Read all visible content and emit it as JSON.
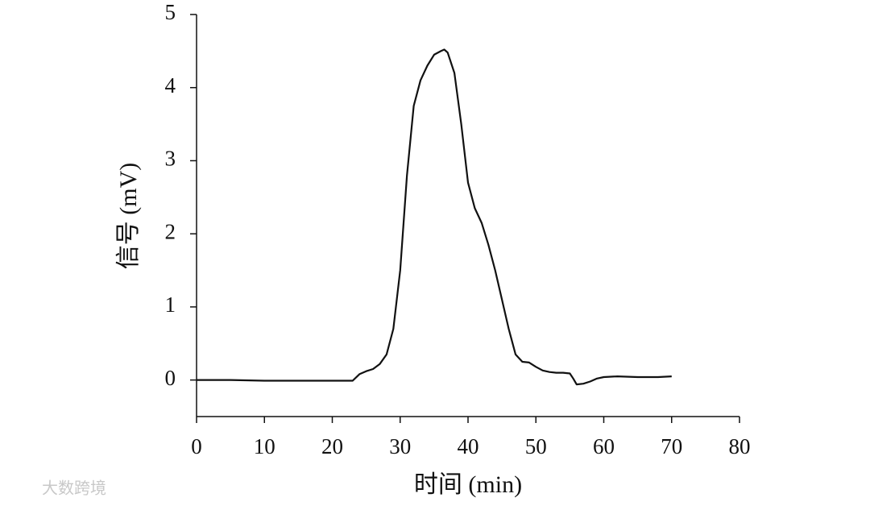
{
  "chart_data": {
    "type": "line",
    "x_label": "时间 (min)",
    "y_label": "信号 (mV)",
    "watermark": "大数跨境",
    "color": "#111111",
    "x": [
      0,
      5,
      10,
      15,
      20,
      23,
      24,
      25,
      26,
      27,
      28,
      29,
      30,
      31,
      32,
      33,
      34,
      35,
      36,
      36.5,
      37,
      38,
      39,
      40,
      41,
      42,
      43,
      44,
      45,
      46,
      47,
      48,
      49,
      50,
      51,
      52,
      53,
      54,
      55,
      55.5,
      56,
      57,
      58,
      59,
      60,
      62,
      65,
      68,
      70
    ],
    "values": [
      0,
      0,
      -0.01,
      -0.01,
      -0.01,
      -0.01,
      0.08,
      0.12,
      0.15,
      0.22,
      0.35,
      0.7,
      1.5,
      2.8,
      3.75,
      4.1,
      4.3,
      4.45,
      4.5,
      4.52,
      4.48,
      4.2,
      3.5,
      2.7,
      2.35,
      2.15,
      1.85,
      1.5,
      1.1,
      0.7,
      0.35,
      0.25,
      0.24,
      0.18,
      0.13,
      0.11,
      0.1,
      0.1,
      0.09,
      0.02,
      -0.06,
      -0.05,
      -0.02,
      0.02,
      0.04,
      0.05,
      0.04,
      0.04,
      0.05
    ],
    "xlim": [
      0,
      80
    ],
    "xticks": [
      0,
      10,
      20,
      30,
      40,
      50,
      60,
      70,
      80
    ],
    "ylim": [
      -0.5,
      5
    ],
    "yticks": [
      0,
      1,
      2,
      3,
      4,
      5
    ]
  }
}
